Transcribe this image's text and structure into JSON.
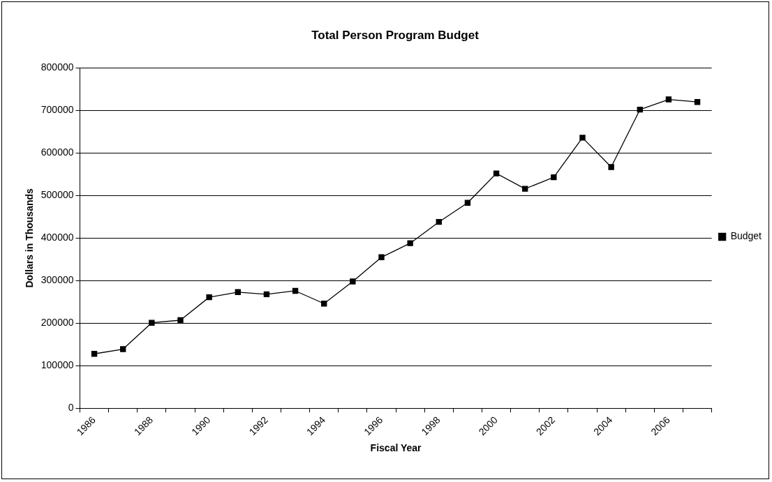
{
  "chart_data": {
    "type": "line",
    "title": "Total Person Program Budget",
    "xlabel": "Fiscal Year",
    "ylabel": "Dollars in Thousands",
    "categories": [
      "1986",
      null,
      "1988",
      null,
      "1990",
      null,
      "1992",
      null,
      "1994",
      null,
      "1996",
      null,
      "1998",
      null,
      "2000",
      null,
      "2002",
      null,
      "2004",
      null,
      "2006",
      null
    ],
    "series": [
      {
        "name": "Budget",
        "color": "#000000",
        "values": [
          128000,
          139000,
          201000,
          207000,
          261000,
          273000,
          268000,
          276000,
          246000,
          298000,
          355000,
          388000,
          438000,
          483000,
          552000,
          516000,
          543000,
          636000,
          567000,
          702000,
          726000,
          720000
        ]
      }
    ],
    "ylim": [
      0,
      800000
    ],
    "yticks": [
      0,
      100000,
      200000,
      300000,
      400000,
      500000,
      600000,
      700000,
      800000
    ],
    "grid": "y",
    "legend": "right",
    "marker": "square",
    "line_style": "solid"
  }
}
